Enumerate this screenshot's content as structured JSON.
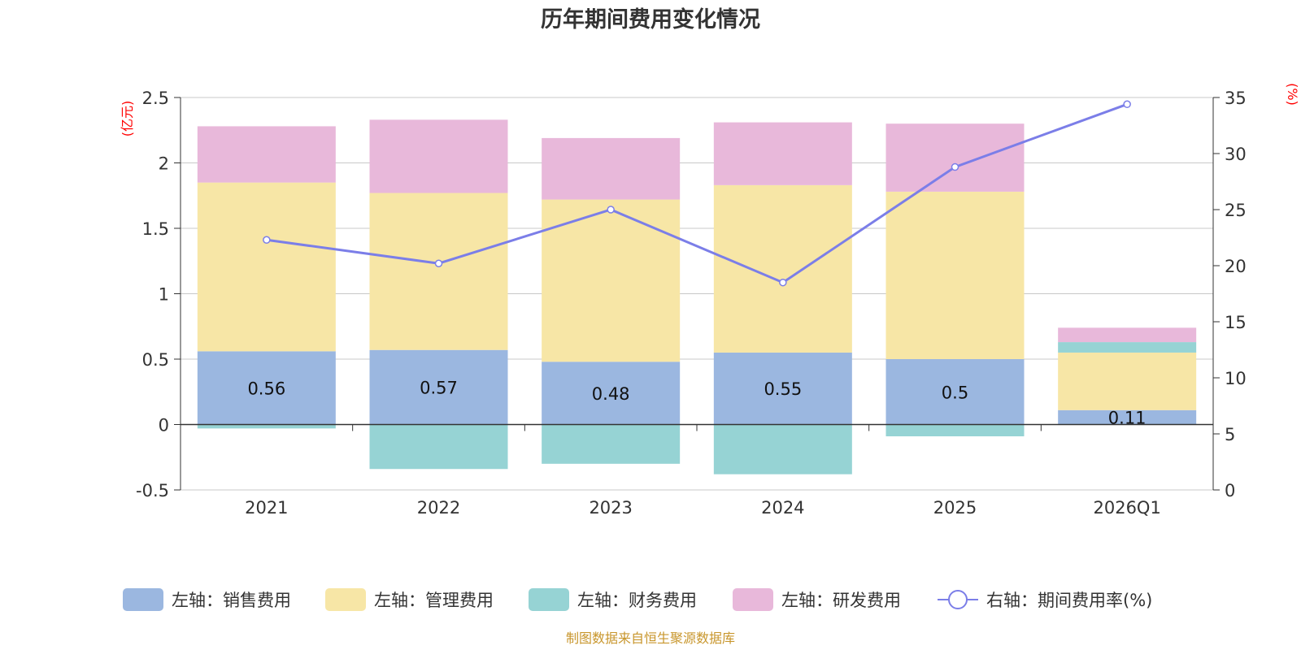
{
  "chart_data": {
    "type": "bar",
    "title": "历年期间费用变化情况",
    "categories": [
      "2021",
      "2022",
      "2023",
      "2024",
      "2025",
      "2026Q1"
    ],
    "left_axis": {
      "unit": "(亿元)",
      "ylim": [
        -0.5,
        2.5
      ],
      "ticks": [
        "2.5",
        "2",
        "1.5",
        "1",
        "0.5",
        "0",
        "-0.5"
      ]
    },
    "right_axis": {
      "unit": "(%)",
      "ylim": [
        0,
        35
      ],
      "ticks": [
        "35",
        "30",
        "25",
        "20",
        "15",
        "10",
        "5",
        "0"
      ]
    },
    "series": [
      {
        "name": "左轴：销售费用",
        "type": "bar",
        "axis": "left",
        "color": "#9bb7e0",
        "values": [
          0.56,
          0.57,
          0.48,
          0.55,
          0.5,
          0.11
        ],
        "labels": [
          "0.56",
          "0.57",
          "0.48",
          "0.55",
          "0.5",
          "0.11"
        ]
      },
      {
        "name": "左轴：管理费用",
        "type": "bar",
        "axis": "left",
        "color": "#f7e6a6",
        "values": [
          1.29,
          1.2,
          1.24,
          1.28,
          1.28,
          0.44
        ]
      },
      {
        "name": "左轴：财务费用",
        "type": "bar",
        "axis": "left",
        "color": "#96d3d4",
        "values": [
          -0.03,
          -0.34,
          -0.3,
          -0.38,
          -0.09,
          0.08
        ]
      },
      {
        "name": "左轴：研发费用",
        "type": "bar",
        "axis": "left",
        "color": "#e8b8da",
        "values": [
          0.43,
          0.56,
          0.47,
          0.48,
          0.52,
          0.11
        ]
      },
      {
        "name": "右轴：期间费用率(%)",
        "type": "line",
        "axis": "right",
        "color": "#7b7ee8",
        "values": [
          22.3,
          20.2,
          25.0,
          18.5,
          28.8,
          34.4
        ]
      }
    ],
    "legend_position": "bottom",
    "grid": true
  },
  "source_note": "制图数据来自恒生聚源数据库"
}
